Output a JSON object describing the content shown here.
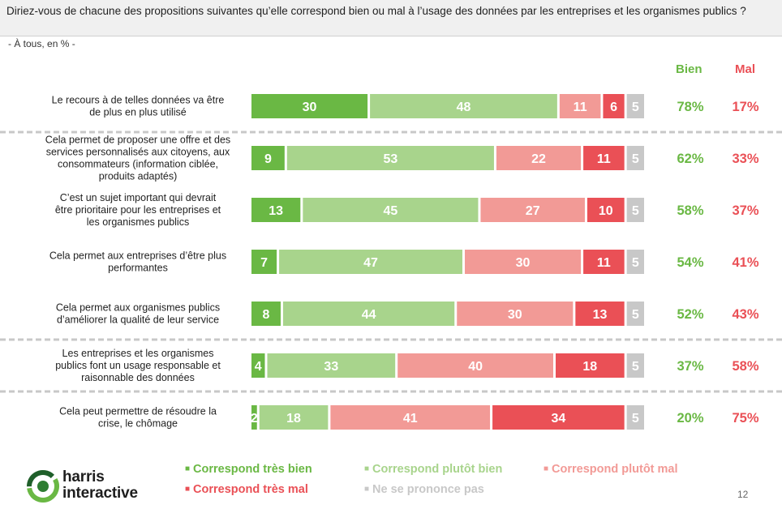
{
  "header": {
    "question": "Diriez-vous de chacune des propositions suivantes qu’elle correspond bien ou mal à l’usage des données par les entreprises et les organismes publics ?",
    "subtitle": "- À tous, en % -"
  },
  "columns": {
    "bien": "Bien",
    "mal": "Mal"
  },
  "colors": {
    "tres_bien": "#6ab844",
    "plutot_bien": "#a8d48c",
    "plutot_mal": "#f29a96",
    "tres_mal": "#ea5056",
    "nsp": "#c8c8c8",
    "bien_text": "#6ab844",
    "mal_text": "#ea5056",
    "separator": "#c8c8c8"
  },
  "chart_data": {
    "type": "bar",
    "orientation": "horizontal",
    "stacked": true,
    "categories": [
      "Le recours à de telles données va être de plus en plus utilisé",
      "Cela permet de proposer une offre et des services personnalisés aux citoyens, aux consommateurs (information ciblée, produits adaptés)",
      "C’est un sujet important qui devrait être prioritaire pour les entreprises et les organismes publics",
      "Cela permet aux entreprises d’être plus performantes",
      "Cela permet aux organismes publics d’améliorer la qualité de leur service",
      "Les entreprises et les organismes publics font un usage responsable et raisonnable des données",
      "Cela peut permettre de résoudre la crise, le chômage"
    ],
    "series": [
      {
        "name": "Correspond très bien",
        "values": [
          30,
          9,
          13,
          7,
          8,
          4,
          2
        ]
      },
      {
        "name": "Correspond plutôt bien",
        "values": [
          48,
          53,
          45,
          47,
          44,
          33,
          18
        ]
      },
      {
        "name": "Correspond plutôt mal",
        "values": [
          11,
          22,
          27,
          30,
          30,
          40,
          41
        ]
      },
      {
        "name": "Correspond très mal",
        "values": [
          6,
          11,
          10,
          11,
          13,
          18,
          34
        ]
      },
      {
        "name": "Ne se prononce pas",
        "values": [
          5,
          5,
          5,
          5,
          5,
          5,
          5
        ]
      }
    ],
    "totals_bien": [
      "78%",
      "62%",
      "58%",
      "54%",
      "52%",
      "37%",
      "20%"
    ],
    "totals_mal": [
      "17%",
      "33%",
      "37%",
      "41%",
      "43%",
      "58%",
      "75%"
    ],
    "separators_after_rows": [
      0,
      4,
      5
    ],
    "xlim": [
      0,
      100
    ],
    "grid": false,
    "legend_position": "bottom"
  },
  "footer": {
    "logo_line1": "harris",
    "logo_line2": "interactive",
    "page_number": "12"
  }
}
